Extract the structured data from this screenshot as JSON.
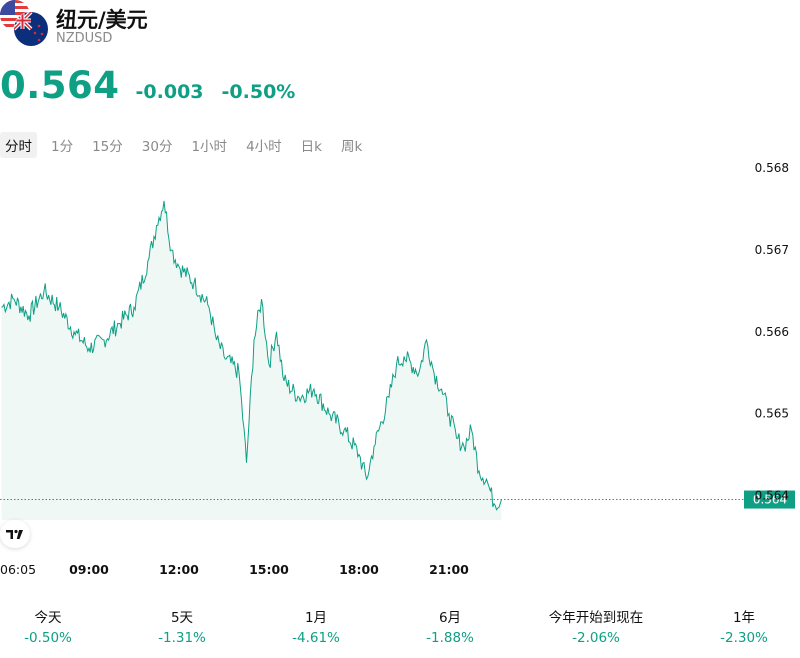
{
  "header": {
    "title": "纽元/美元",
    "symbol": "NZDUSD",
    "price": "0.564",
    "change": "-0.003",
    "change_pct": "-0.50%"
  },
  "tabs": [
    "分时",
    "1分",
    "15分",
    "30分",
    "1小时",
    "4小时",
    "日k",
    "周k"
  ],
  "active_tab": 0,
  "periods": [
    {
      "label": "今天",
      "value": "-0.50%"
    },
    {
      "label": "5天",
      "value": "-1.31%"
    },
    {
      "label": "1月",
      "value": "-4.61%"
    },
    {
      "label": "6月",
      "value": "-1.88%"
    },
    {
      "label": "今年开始到现在",
      "value": "-2.06%"
    },
    {
      "label": "1年",
      "value": "-2.30%"
    }
  ],
  "icons": {
    "flags": "us-nz-flags-icon",
    "tradingview": "tradingview-logo-icon"
  },
  "colors": {
    "accent": "#0e9f84",
    "fill": "#e9f5f2"
  },
  "chart_data": {
    "type": "line",
    "x_ticks": [
      "06:05",
      "09:00",
      "12:00",
      "15:00",
      "18:00",
      "21:00"
    ],
    "y_ticks": [
      "0.568",
      "0.567",
      "0.566",
      "0.565",
      "0.564"
    ],
    "ylim": [
      0.5637,
      0.5681
    ],
    "last_value_label": "0.564",
    "last_value": 0.56395,
    "x": [
      "06:05",
      "06:30",
      "07:00",
      "07:30",
      "08:00",
      "08:30",
      "09:00",
      "09:30",
      "10:00",
      "10:30",
      "11:00",
      "11:15",
      "11:30",
      "11:45",
      "12:00",
      "12:30",
      "13:00",
      "13:15",
      "13:30",
      "14:00",
      "14:15",
      "14:30",
      "14:45",
      "15:00",
      "15:15",
      "15:30",
      "16:00",
      "16:30",
      "17:00",
      "17:30",
      "18:00",
      "18:15",
      "18:30",
      "19:00",
      "19:15",
      "19:30",
      "20:00",
      "20:15",
      "20:30",
      "20:45",
      "21:00",
      "21:15",
      "21:30",
      "21:45",
      "22:00",
      "22:15",
      "22:30",
      "22:45"
    ],
    "values": [
      0.5663,
      0.5664,
      0.5662,
      0.5665,
      0.5663,
      0.566,
      0.5658,
      0.5659,
      0.5661,
      0.5663,
      0.5669,
      0.5673,
      0.5676,
      0.567,
      0.5668,
      0.5666,
      0.5663,
      0.5659,
      0.5657,
      0.5655,
      0.5644,
      0.5659,
      0.5664,
      0.5656,
      0.566,
      0.5654,
      0.5652,
      0.5653,
      0.565,
      0.5648,
      0.5645,
      0.5642,
      0.5646,
      0.5652,
      0.5656,
      0.5657,
      0.5655,
      0.5659,
      0.5655,
      0.5653,
      0.565,
      0.5647,
      0.5646,
      0.5648,
      0.5643,
      0.5642,
      0.5639,
      0.56395
    ],
    "grid": false,
    "area_fill": true
  }
}
